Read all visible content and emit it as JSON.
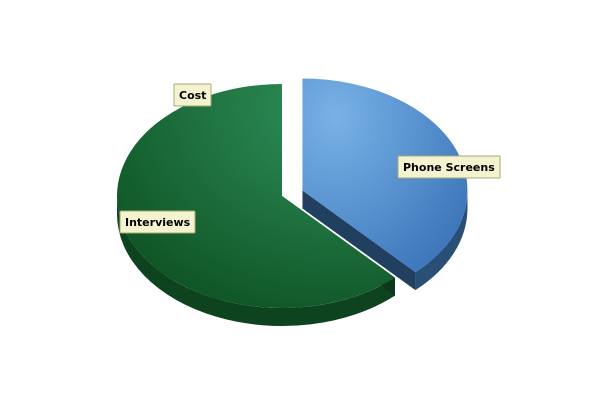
{
  "chart_data": {
    "type": "pie",
    "style": "3d-exploded",
    "slices": [
      {
        "label": "Phone Screens",
        "value": 38,
        "color": "#4a8fd6",
        "exploded": true
      },
      {
        "label": "Cost",
        "value": 0,
        "color": "#2a9a5a",
        "exploded": false
      },
      {
        "label": "Interviews",
        "value": 62,
        "color": "#1a7a3a",
        "exploded": false
      }
    ],
    "label_box_fill": "#f3f3d0",
    "label_box_stroke": "#a8a878"
  }
}
